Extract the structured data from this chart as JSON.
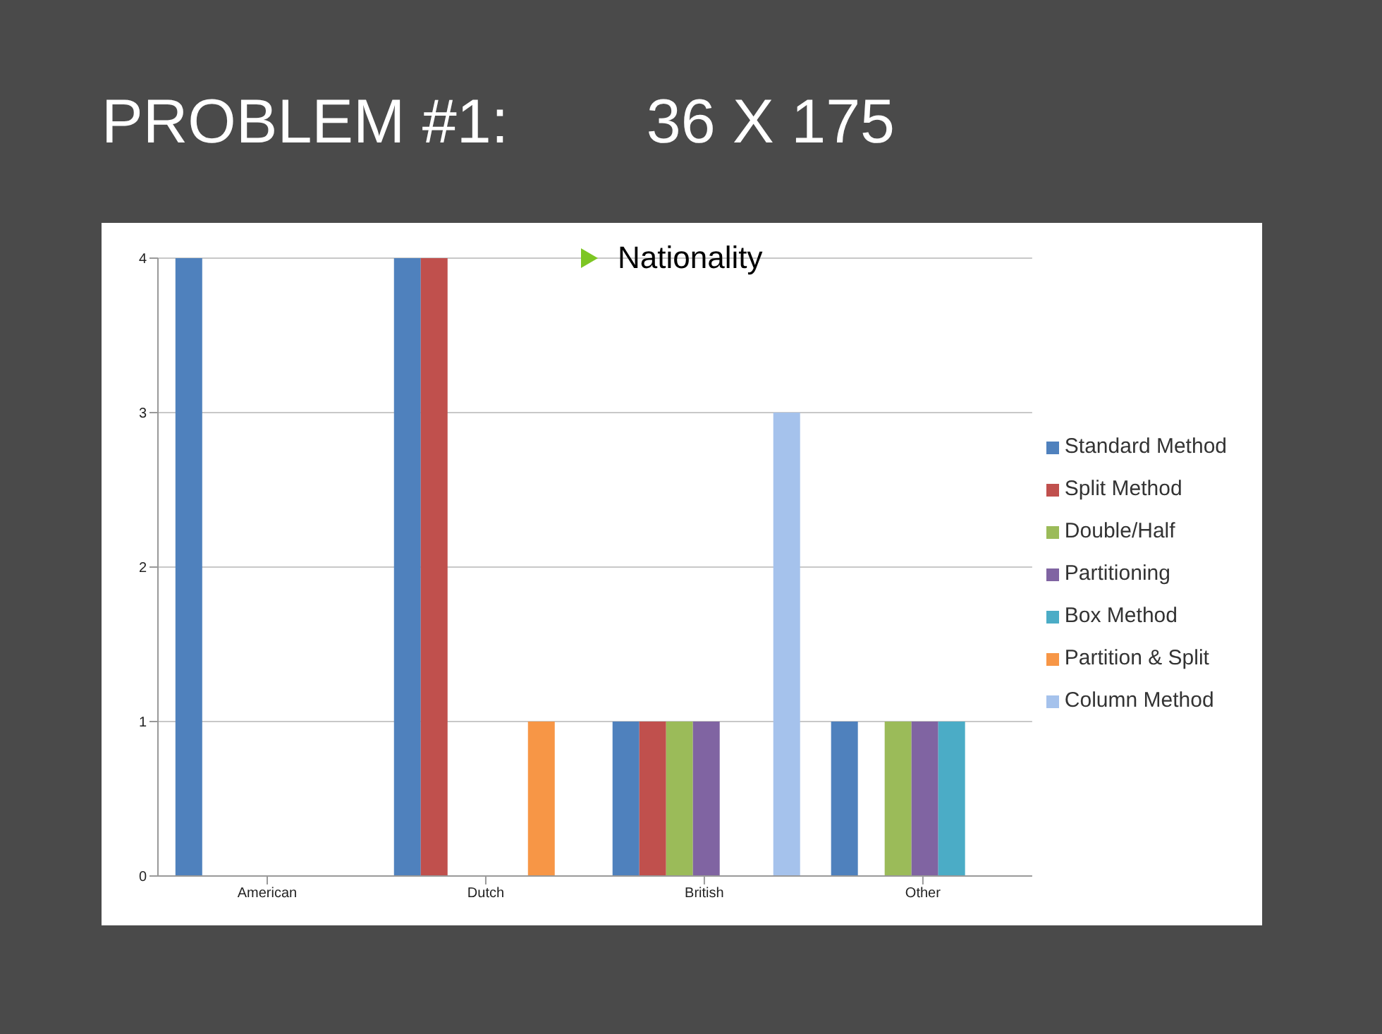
{
  "chart_data": {
    "type": "bar",
    "title": "PROBLEM #1:        36 X 175",
    "subtitle": "Nationality",
    "categories": [
      "American",
      "Dutch",
      "British",
      "Other"
    ],
    "series": [
      {
        "name": "Standard Method",
        "color": "#4f81bd",
        "values": [
          4,
          4,
          1,
          1
        ]
      },
      {
        "name": "Split Method",
        "color": "#c0504d",
        "values": [
          0,
          4,
          1,
          0
        ]
      },
      {
        "name": "Double/Half",
        "color": "#9bbb59",
        "values": [
          0,
          0,
          1,
          1
        ]
      },
      {
        "name": "Partitioning",
        "color": "#8064a2",
        "values": [
          0,
          0,
          1,
          1
        ]
      },
      {
        "name": "Box Method",
        "color": "#4bacc6",
        "values": [
          0,
          0,
          0,
          1
        ]
      },
      {
        "name": "Partition & Split",
        "color": "#f79646",
        "values": [
          0,
          1,
          0,
          0
        ]
      },
      {
        "name": "Column Method",
        "color": "#a5c2ec",
        "values": [
          0,
          0,
          3,
          0
        ]
      }
    ],
    "ylim": [
      0,
      4
    ],
    "yticks": [
      0,
      1,
      2,
      3,
      4
    ],
    "grid": "y",
    "legend": "right"
  }
}
